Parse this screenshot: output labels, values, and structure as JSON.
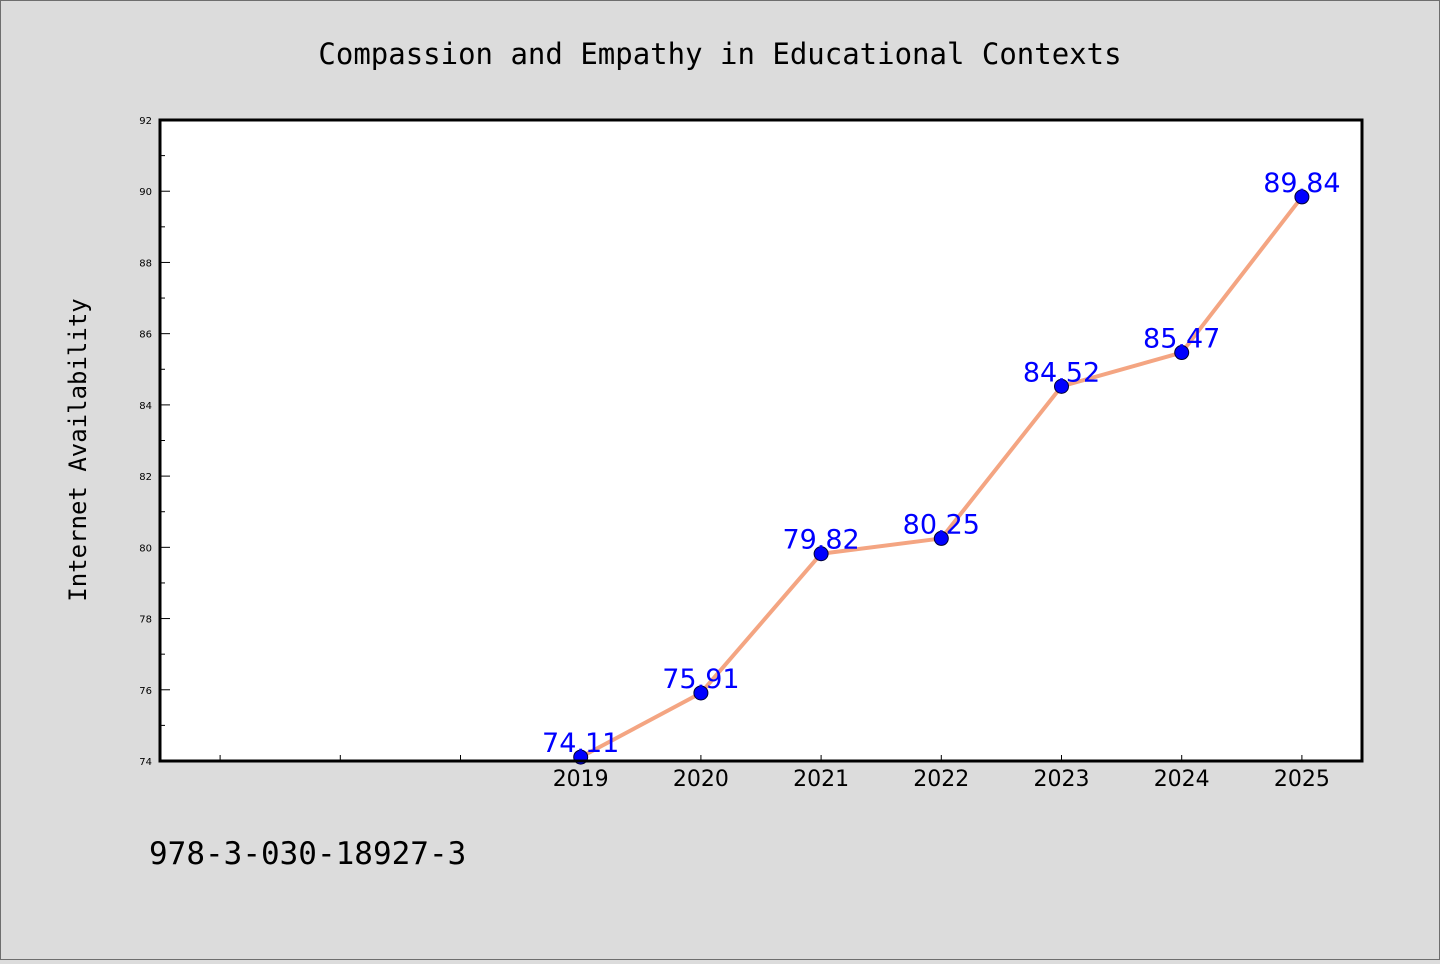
{
  "footer": {
    "isbn": "978-3-030-18927-3"
  },
  "colors": {
    "background": "#dcdcdc",
    "plot_background": "#ffffff",
    "line": "#f4a582",
    "marker": "#0000ff",
    "data_label": "#0000ff",
    "axis": "#000000"
  },
  "chart_data": {
    "type": "line",
    "title": "Compassion and Empathy in Educational Contexts",
    "xlabel": "",
    "ylabel": "Internet Availability",
    "categories": [
      "2019",
      "2020",
      "2021",
      "2022",
      "2023",
      "2024",
      "2025"
    ],
    "values": [
      74.11,
      75.91,
      79.82,
      80.25,
      84.52,
      85.47,
      89.84
    ],
    "data_labels": [
      "74.11",
      "75.91",
      "79.82",
      "80.25",
      "84.52",
      "85.47",
      "89.84"
    ],
    "xlim": [
      2015.5,
      2025.5
    ],
    "ylim": [
      74,
      92
    ],
    "yticks": [
      "74",
      "76",
      "78",
      "80",
      "82",
      "84",
      "86",
      "88",
      "90",
      "92"
    ],
    "grid": false,
    "legend": "none"
  }
}
